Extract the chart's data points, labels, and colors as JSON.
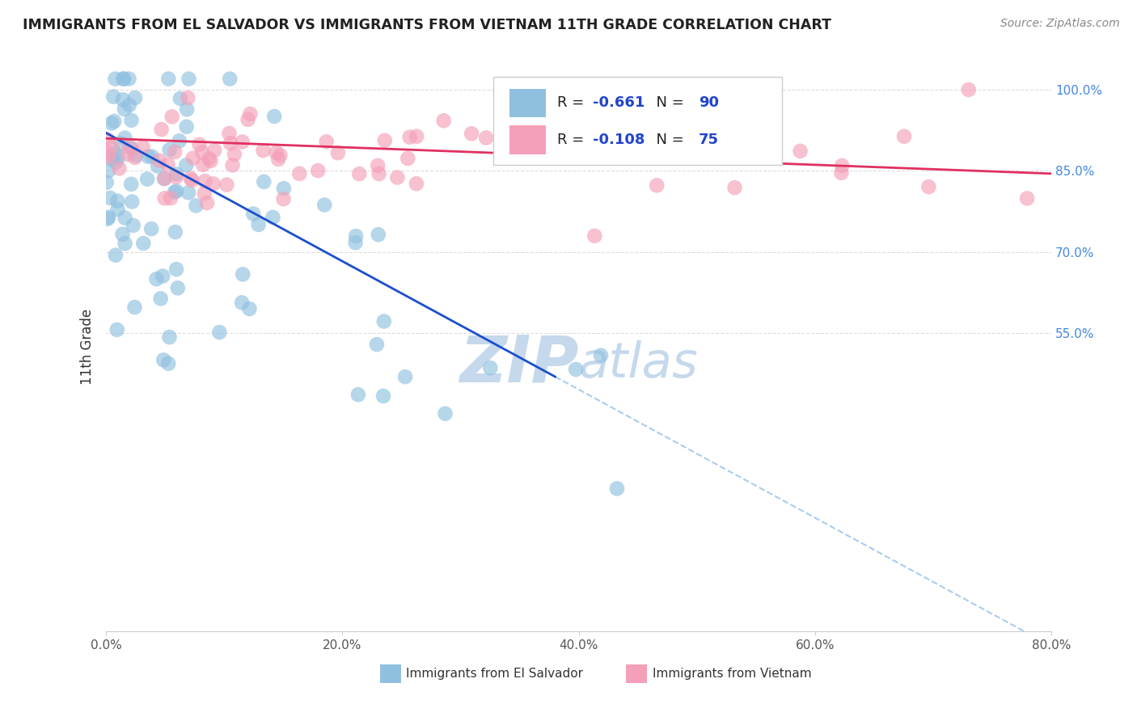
{
  "title": "IMMIGRANTS FROM EL SALVADOR VS IMMIGRANTS FROM VIETNAM 11TH GRADE CORRELATION CHART",
  "source": "Source: ZipAtlas.com",
  "ylabel": "11th Grade",
  "legend_label1": "Immigrants from El Salvador",
  "legend_label2": "Immigrants from Vietnam",
  "R1": -0.661,
  "N1": 90,
  "R2": -0.108,
  "N2": 75,
  "xlim": [
    0.0,
    0.8
  ],
  "ylim": [
    0.0,
    1.05
  ],
  "xtick_labels": [
    "0.0%",
    "20.0%",
    "40.0%",
    "60.0%",
    "80.0%"
  ],
  "xtick_vals": [
    0.0,
    0.2,
    0.4,
    0.6,
    0.8
  ],
  "ytick_labels": [
    "100.0%",
    "85.0%",
    "70.0%",
    "55.0%"
  ],
  "ytick_vals": [
    1.0,
    0.85,
    0.7,
    0.55
  ],
  "color_blue": "#90C0E0",
  "color_pink": "#F4A0B8",
  "line_blue": "#1a4fcc",
  "line_pink": "#E03060",
  "dash_color": "#AACCEE",
  "watermark_color": "#C5D8EC",
  "background": "#FFFFFF"
}
